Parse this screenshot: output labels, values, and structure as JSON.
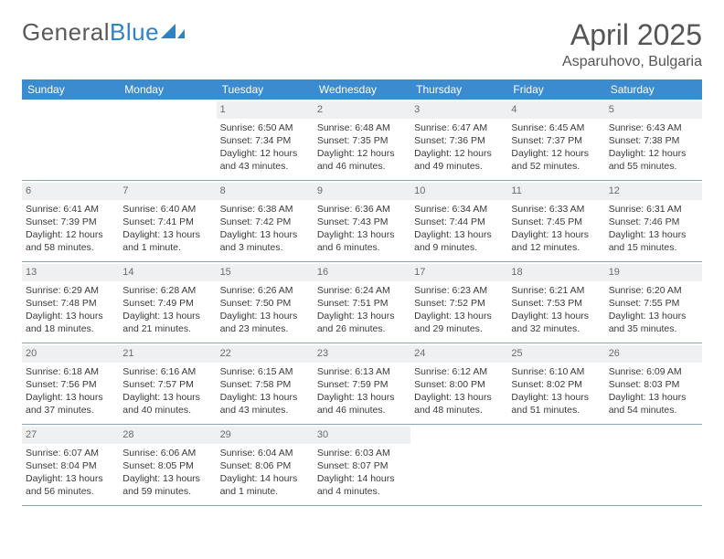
{
  "brand": {
    "part1": "General",
    "part2": "Blue"
  },
  "title": "April 2025",
  "location": "Asparuhovo, Bulgaria",
  "colors": {
    "header_bg": "#3a8bcf",
    "header_text": "#ffffff",
    "daynum_bg": "#eef0f2",
    "daynum_text": "#6b6b6b",
    "text": "#3a3a3a",
    "rule": "#8aa4b8",
    "logo_gray": "#5a5a5a",
    "logo_blue": "#2f82c4"
  },
  "days_of_week": [
    "Sunday",
    "Monday",
    "Tuesday",
    "Wednesday",
    "Thursday",
    "Friday",
    "Saturday"
  ],
  "weeks": [
    [
      null,
      null,
      {
        "n": "1",
        "sr": "6:50 AM",
        "ss": "7:34 PM",
        "dl": "12 hours and 43 minutes."
      },
      {
        "n": "2",
        "sr": "6:48 AM",
        "ss": "7:35 PM",
        "dl": "12 hours and 46 minutes."
      },
      {
        "n": "3",
        "sr": "6:47 AM",
        "ss": "7:36 PM",
        "dl": "12 hours and 49 minutes."
      },
      {
        "n": "4",
        "sr": "6:45 AM",
        "ss": "7:37 PM",
        "dl": "12 hours and 52 minutes."
      },
      {
        "n": "5",
        "sr": "6:43 AM",
        "ss": "7:38 PM",
        "dl": "12 hours and 55 minutes."
      }
    ],
    [
      {
        "n": "6",
        "sr": "6:41 AM",
        "ss": "7:39 PM",
        "dl": "12 hours and 58 minutes."
      },
      {
        "n": "7",
        "sr": "6:40 AM",
        "ss": "7:41 PM",
        "dl": "13 hours and 1 minute."
      },
      {
        "n": "8",
        "sr": "6:38 AM",
        "ss": "7:42 PM",
        "dl": "13 hours and 3 minutes."
      },
      {
        "n": "9",
        "sr": "6:36 AM",
        "ss": "7:43 PM",
        "dl": "13 hours and 6 minutes."
      },
      {
        "n": "10",
        "sr": "6:34 AM",
        "ss": "7:44 PM",
        "dl": "13 hours and 9 minutes."
      },
      {
        "n": "11",
        "sr": "6:33 AM",
        "ss": "7:45 PM",
        "dl": "13 hours and 12 minutes."
      },
      {
        "n": "12",
        "sr": "6:31 AM",
        "ss": "7:46 PM",
        "dl": "13 hours and 15 minutes."
      }
    ],
    [
      {
        "n": "13",
        "sr": "6:29 AM",
        "ss": "7:48 PM",
        "dl": "13 hours and 18 minutes."
      },
      {
        "n": "14",
        "sr": "6:28 AM",
        "ss": "7:49 PM",
        "dl": "13 hours and 21 minutes."
      },
      {
        "n": "15",
        "sr": "6:26 AM",
        "ss": "7:50 PM",
        "dl": "13 hours and 23 minutes."
      },
      {
        "n": "16",
        "sr": "6:24 AM",
        "ss": "7:51 PM",
        "dl": "13 hours and 26 minutes."
      },
      {
        "n": "17",
        "sr": "6:23 AM",
        "ss": "7:52 PM",
        "dl": "13 hours and 29 minutes."
      },
      {
        "n": "18",
        "sr": "6:21 AM",
        "ss": "7:53 PM",
        "dl": "13 hours and 32 minutes."
      },
      {
        "n": "19",
        "sr": "6:20 AM",
        "ss": "7:55 PM",
        "dl": "13 hours and 35 minutes."
      }
    ],
    [
      {
        "n": "20",
        "sr": "6:18 AM",
        "ss": "7:56 PM",
        "dl": "13 hours and 37 minutes."
      },
      {
        "n": "21",
        "sr": "6:16 AM",
        "ss": "7:57 PM",
        "dl": "13 hours and 40 minutes."
      },
      {
        "n": "22",
        "sr": "6:15 AM",
        "ss": "7:58 PM",
        "dl": "13 hours and 43 minutes."
      },
      {
        "n": "23",
        "sr": "6:13 AM",
        "ss": "7:59 PM",
        "dl": "13 hours and 46 minutes."
      },
      {
        "n": "24",
        "sr": "6:12 AM",
        "ss": "8:00 PM",
        "dl": "13 hours and 48 minutes."
      },
      {
        "n": "25",
        "sr": "6:10 AM",
        "ss": "8:02 PM",
        "dl": "13 hours and 51 minutes."
      },
      {
        "n": "26",
        "sr": "6:09 AM",
        "ss": "8:03 PM",
        "dl": "13 hours and 54 minutes."
      }
    ],
    [
      {
        "n": "27",
        "sr": "6:07 AM",
        "ss": "8:04 PM",
        "dl": "13 hours and 56 minutes."
      },
      {
        "n": "28",
        "sr": "6:06 AM",
        "ss": "8:05 PM",
        "dl": "13 hours and 59 minutes."
      },
      {
        "n": "29",
        "sr": "6:04 AM",
        "ss": "8:06 PM",
        "dl": "14 hours and 1 minute."
      },
      {
        "n": "30",
        "sr": "6:03 AM",
        "ss": "8:07 PM",
        "dl": "14 hours and 4 minutes."
      },
      null,
      null,
      null
    ]
  ],
  "labels": {
    "sunrise": "Sunrise: ",
    "sunset": "Sunset: ",
    "daylight": "Daylight: "
  }
}
